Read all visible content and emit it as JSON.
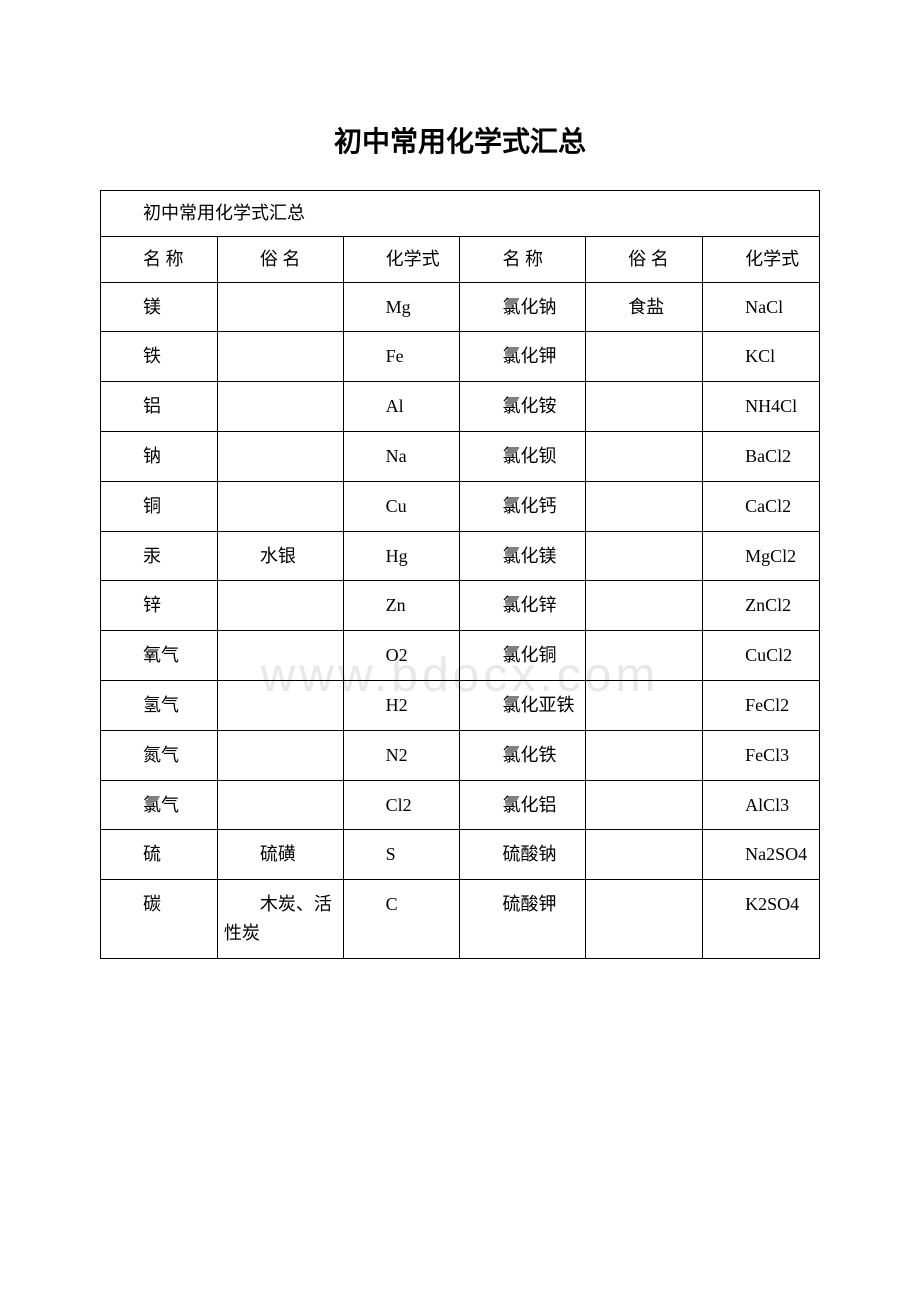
{
  "title": "初中常用化学式汇总",
  "caption": "初中常用化学式汇总",
  "watermark": "www.bdocx.com",
  "columns": {
    "name1": "名 称",
    "common1": "俗 名",
    "formula1": "化学式",
    "name2": "名 称",
    "common2": "俗 名",
    "formula2": "化学式"
  },
  "rows": [
    {
      "n1": "镁",
      "c1": "",
      "f1": "Mg",
      "n2": "氯化钠",
      "c2": "食盐",
      "f2": "NaCl"
    },
    {
      "n1": "铁",
      "c1": "",
      "f1": "Fe",
      "n2": "氯化钾",
      "c2": "",
      "f2": "KCl"
    },
    {
      "n1": "铝",
      "c1": "",
      "f1": "Al",
      "n2": "氯化铵",
      "c2": "",
      "f2": "NH4Cl"
    },
    {
      "n1": "钠",
      "c1": "",
      "f1": "Na",
      "n2": "氯化钡",
      "c2": "",
      "f2": "BaCl2"
    },
    {
      "n1": "铜",
      "c1": "",
      "f1": "Cu",
      "n2": "氯化钙",
      "c2": "",
      "f2": "CaCl2"
    },
    {
      "n1": "汞",
      "c1": "水银",
      "f1": "Hg",
      "n2": "氯化镁",
      "c2": "",
      "f2": "MgCl2"
    },
    {
      "n1": "锌",
      "c1": "",
      "f1": "Zn",
      "n2": "氯化锌",
      "c2": "",
      "f2": "ZnCl2"
    },
    {
      "n1": "氧气",
      "c1": "",
      "f1": "O2",
      "n2": "氯化铜",
      "c2": "",
      "f2": "CuCl2"
    },
    {
      "n1": "氢气",
      "c1": "",
      "f1": "H2",
      "n2": "氯化亚铁",
      "c2": "",
      "f2": "FeCl2"
    },
    {
      "n1": "氮气",
      "c1": "",
      "f1": "N2",
      "n2": "氯化铁",
      "c2": "",
      "f2": "FeCl3"
    },
    {
      "n1": "氯气",
      "c1": "",
      "f1": "Cl2",
      "n2": "氯化铝",
      "c2": "",
      "f2": "AlCl3"
    },
    {
      "n1": "硫",
      "c1": "硫磺",
      "f1": "S",
      "n2": "硫酸钠",
      "c2": "",
      "f2": "Na2SO4"
    },
    {
      "n1": "碳",
      "c1": "木炭、活性炭",
      "f1": "C",
      "n2": "硫酸钾",
      "c2": "",
      "f2": "K2SO4"
    }
  ],
  "style": {
    "col_widths_pct": [
      13,
      14,
      13,
      14,
      13,
      13
    ],
    "border_color": "#000000",
    "text_color": "#000000",
    "background": "#ffffff",
    "title_fontsize": 28,
    "cell_fontsize": 18
  }
}
